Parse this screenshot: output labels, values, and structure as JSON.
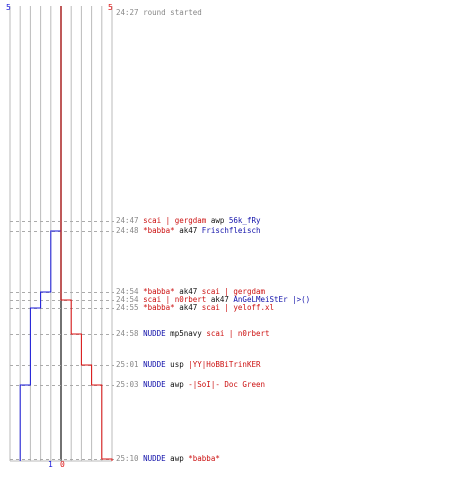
{
  "teams": {
    "blue": {
      "color": "#1a1adb",
      "start": "5",
      "end": "1"
    },
    "red": {
      "color": "#dd1111",
      "start": "5",
      "end": "0"
    }
  },
  "events": [
    {
      "time": "24:27",
      "parts": [
        {
          "text": "round started",
          "style": "t"
        }
      ]
    },
    {
      "time": "24:47",
      "parts": [
        {
          "text": "scai | gergdam",
          "style": "r"
        },
        {
          "text": " awp ",
          "style": "k"
        },
        {
          "text": "56k_fRy",
          "style": "b"
        }
      ]
    },
    {
      "time": "24:48",
      "parts": [
        {
          "text": "*babba*",
          "style": "r"
        },
        {
          "text": " ak47 ",
          "style": "k"
        },
        {
          "text": "Frischfleisch",
          "style": "b"
        }
      ]
    },
    {
      "time": "24:54",
      "parts": [
        {
          "text": "*babba*",
          "style": "r"
        },
        {
          "text": " ak47 ",
          "style": "k"
        },
        {
          "text": "scai | gergdam",
          "style": "r"
        }
      ]
    },
    {
      "time": "24:54",
      "parts": [
        {
          "text": "scai | n0rbert",
          "style": "r"
        },
        {
          "text": " ak47 ",
          "style": "k"
        },
        {
          "text": "AnGeLMeiStEr |>()",
          "style": "b"
        }
      ]
    },
    {
      "time": "24:55",
      "parts": [
        {
          "text": "*babba*",
          "style": "r"
        },
        {
          "text": " ak47 ",
          "style": "k"
        },
        {
          "text": "scai | yeloff.xl",
          "style": "r"
        }
      ]
    },
    {
      "time": "24:58",
      "parts": [
        {
          "text": "NUDDE",
          "style": "b"
        },
        {
          "text": " mp5navy ",
          "style": "k"
        },
        {
          "text": "scai | n0rbert",
          "style": "r"
        }
      ]
    },
    {
      "time": "25:01",
      "parts": [
        {
          "text": "NUDDE",
          "style": "b"
        },
        {
          "text": " usp ",
          "style": "k"
        },
        {
          "text": "|YY|HoBBiTrinKER",
          "style": "r"
        }
      ]
    },
    {
      "time": "25:03",
      "parts": [
        {
          "text": "NUDDE",
          "style": "b"
        },
        {
          "text": " awp ",
          "style": "k"
        },
        {
          "text": "-|SoI|- Doc Green",
          "style": "r"
        }
      ]
    },
    {
      "time": "25:10",
      "parts": [
        {
          "text": "NUDDE",
          "style": "b"
        },
        {
          "text": " awp ",
          "style": "k"
        },
        {
          "text": "*babba*",
          "style": "r"
        }
      ]
    }
  ],
  "blue_alive": [
    5,
    5,
    4,
    3,
    3,
    2,
    2,
    2,
    1,
    1
  ],
  "red_alive": [
    5,
    5,
    5,
    5,
    4,
    4,
    3,
    2,
    1,
    0
  ]
}
